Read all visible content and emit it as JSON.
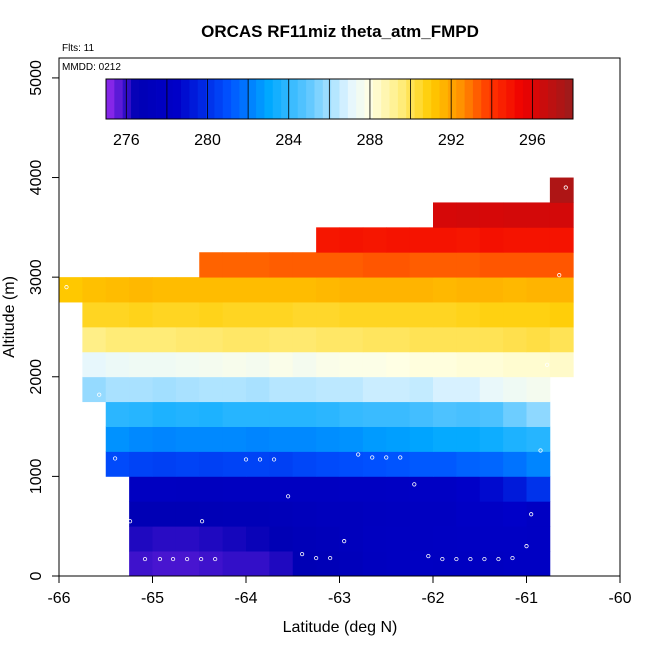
{
  "chart_data": {
    "type": "heatmap",
    "title": "ORCAS RF11miz theta_atm_FMPD",
    "annotations": {
      "flights": "Flts: 11",
      "date": "MMDD: 0212"
    },
    "xlabel": "Latitude (deg N)",
    "ylabel": "Altitude (m)",
    "xlim": [
      -66,
      -60
    ],
    "ylim": [
      0,
      5200
    ],
    "x_ticks": [
      -66,
      -65,
      -64,
      -63,
      -62,
      -61,
      -60
    ],
    "x_tick_labels": [
      "-66",
      "-65",
      "-64",
      "-63",
      "-62",
      "-61",
      "-60"
    ],
    "y_ticks": [
      0,
      1000,
      2000,
      3000,
      4000,
      5000
    ],
    "y_tick_labels": [
      "0",
      "1000",
      "2000",
      "3000",
      "4000",
      "5000"
    ],
    "colorbar": {
      "range": [
        275,
        298
      ],
      "ticks": [
        276,
        280,
        284,
        288,
        292,
        296
      ],
      "tick_labels": [
        "276",
        "280",
        "284",
        "288",
        "292",
        "296"
      ],
      "stops": [
        {
          "v": 275.0,
          "c": "#9a2cf0"
        },
        {
          "v": 276.5,
          "c": "#0000b4"
        },
        {
          "v": 278.5,
          "c": "#0000c8"
        },
        {
          "v": 281.0,
          "c": "#0050ff"
        },
        {
          "v": 283.0,
          "c": "#00a8ff"
        },
        {
          "v": 285.0,
          "c": "#60c8ff"
        },
        {
          "v": 287.0,
          "c": "#e4f6ff"
        },
        {
          "v": 288.0,
          "c": "#ffffe4"
        },
        {
          "v": 289.5,
          "c": "#ffee80"
        },
        {
          "v": 291.0,
          "c": "#ffcc00"
        },
        {
          "v": 292.5,
          "c": "#ff9000"
        },
        {
          "v": 294.0,
          "c": "#ff3000"
        },
        {
          "v": 295.5,
          "c": "#ee0000"
        },
        {
          "v": 298.0,
          "c": "#9a1c1c"
        }
      ]
    },
    "cell_altitude_step_m": 250,
    "cell_latitude_step_deg": 0.25,
    "rows": [
      {
        "alt": 125,
        "lat_start": -65.25,
        "values": [
          275.9,
          275.8,
          275.8,
          275.9,
          276.0,
          276.0,
          276.2,
          276.6,
          276.8,
          277.2,
          277.6,
          277.8,
          277.9,
          277.8,
          277.8,
          277.8,
          278.0,
          278.0
        ]
      },
      {
        "alt": 375,
        "lat_start": -65.25,
        "values": [
          276.2,
          276.1,
          276.1,
          276.2,
          276.3,
          276.4,
          276.6,
          276.9,
          277.1,
          277.4,
          277.7,
          277.8,
          277.8,
          277.9,
          278.0,
          278.1,
          278.1,
          278.0
        ]
      },
      {
        "alt": 625,
        "lat_start": -65.25,
        "values": [
          276.6,
          276.6,
          276.6,
          276.7,
          276.8,
          276.8,
          277.0,
          277.2,
          277.4,
          277.4,
          277.6,
          277.7,
          277.8,
          277.8,
          278.2,
          278.2,
          278.5,
          278.0
        ]
      },
      {
        "alt": 875,
        "lat_start": -65.25,
        "values": [
          277.8,
          277.8,
          277.7,
          277.6,
          277.7,
          277.7,
          277.8,
          277.8,
          277.8,
          277.9,
          277.9,
          278.0,
          278.1,
          278.1,
          278.5,
          278.8,
          279.3,
          280.1
        ]
      },
      {
        "alt": 1125,
        "lat_start": -65.5,
        "values": [
          280.8,
          280.6,
          280.5,
          280.6,
          280.5,
          280.6,
          280.6,
          280.5,
          280.7,
          280.8,
          280.9,
          281.0,
          281.1,
          281.2,
          281.2,
          281.4,
          281.5,
          281.8,
          282.2
        ]
      },
      {
        "alt": 1375,
        "lat_start": -65.5,
        "values": [
          282.5,
          282.3,
          282.2,
          282.3,
          282.3,
          282.3,
          282.2,
          282.3,
          282.3,
          282.4,
          282.5,
          282.7,
          282.8,
          282.9,
          283.1,
          283.1,
          283.3,
          283.6,
          283.8
        ]
      },
      {
        "alt": 1625,
        "lat_start": -65.5,
        "values": [
          283.9,
          283.8,
          283.6,
          283.7,
          283.6,
          283.8,
          283.8,
          283.8,
          283.8,
          283.9,
          284.1,
          284.2,
          284.2,
          284.4,
          284.6,
          284.5,
          284.6,
          285.2,
          285.7
        ]
      },
      {
        "alt": 1875,
        "lat_start": -65.75,
        "values": [
          285.8,
          286.1,
          286.1,
          286.0,
          286.1,
          286.2,
          286.2,
          286.1,
          286.3,
          286.3,
          286.4,
          286.4,
          286.6,
          286.6,
          286.5,
          286.8,
          286.8,
          287.2,
          287.4,
          287.6
        ]
      },
      {
        "alt": 2125,
        "lat_start": -65.75,
        "values": [
          287.1,
          287.3,
          287.4,
          287.4,
          287.5,
          287.6,
          287.7,
          287.6,
          287.8,
          287.6,
          287.8,
          287.9,
          287.9,
          288.0,
          288.1,
          288.1,
          288.2,
          288.2,
          288.3,
          288.3,
          288.4
        ]
      },
      {
        "alt": 2375,
        "lat_start": -65.75,
        "values": [
          289.4,
          289.6,
          289.6,
          289.6,
          289.7,
          289.7,
          289.8,
          289.8,
          289.7,
          289.7,
          289.8,
          289.8,
          289.9,
          289.9,
          290.0,
          290.0,
          290.0,
          290.0,
          290.1,
          290.2,
          290.0
        ]
      },
      {
        "alt": 2625,
        "lat_start": -65.75,
        "values": [
          290.6,
          290.6,
          290.7,
          290.6,
          290.6,
          290.7,
          290.6,
          290.6,
          290.6,
          290.5,
          290.5,
          290.6,
          290.6,
          290.6,
          290.6,
          290.6,
          290.7,
          290.8,
          290.8,
          290.8,
          290.9
        ]
      },
      {
        "alt": 2875,
        "lat_start": -66.0,
        "values": [
          291.1,
          291.3,
          291.4,
          291.5,
          291.4,
          291.4,
          291.4,
          291.4,
          291.4,
          291.4,
          291.4,
          291.5,
          291.6,
          291.6,
          291.6,
          291.6,
          291.5,
          291.6,
          291.6,
          291.5,
          291.6,
          291.6
        ]
      },
      {
        "alt": 3125,
        "lat_start": -64.5,
        "values": [
          293.2,
          293.2,
          293.2,
          293.3,
          293.3,
          293.3,
          293.3,
          293.4,
          293.4,
          293.3,
          293.3,
          293.3,
          293.4,
          293.4,
          293.4,
          293.4
        ]
      },
      {
        "alt": 3375,
        "lat_start": -63.25,
        "values": [
          294.8,
          294.9,
          294.8,
          294.9,
          294.9,
          294.9,
          294.8,
          295.0,
          294.9,
          294.9,
          294.9
        ]
      },
      {
        "alt": 3625,
        "lat_start": -62.0,
        "values": [
          296.2,
          296.3,
          296.2,
          296.3,
          296.3,
          296.3
        ]
      },
      {
        "alt": 3875,
        "lat_start": -60.75,
        "values": [
          297.4
        ]
      }
    ],
    "observations": [
      [
        -65.4,
        1180
      ],
      [
        -65.24,
        550
      ],
      [
        -65.08,
        170
      ],
      [
        -64.92,
        170
      ],
      [
        -64.78,
        170
      ],
      [
        -64.63,
        170
      ],
      [
        -64.48,
        170
      ],
      [
        -64.33,
        170
      ],
      [
        -64.47,
        550
      ],
      [
        -64.0,
        1170
      ],
      [
        -63.85,
        1170
      ],
      [
        -63.7,
        1170
      ],
      [
        -63.55,
        800
      ],
      [
        -63.4,
        220
      ],
      [
        -63.25,
        180
      ],
      [
        -63.1,
        180
      ],
      [
        -62.95,
        350
      ],
      [
        -62.8,
        1220
      ],
      [
        -62.65,
        1190
      ],
      [
        -62.5,
        1190
      ],
      [
        -62.35,
        1190
      ],
      [
        -62.2,
        920
      ],
      [
        -62.05,
        200
      ],
      [
        -61.9,
        170
      ],
      [
        -61.75,
        170
      ],
      [
        -61.6,
        170
      ],
      [
        -61.45,
        170
      ],
      [
        -61.3,
        170
      ],
      [
        -61.15,
        180
      ],
      [
        -61.0,
        300
      ],
      [
        -60.95,
        620
      ],
      [
        -60.85,
        1260
      ],
      [
        -60.78,
        2120
      ],
      [
        -60.65,
        3020
      ],
      [
        -60.58,
        3900
      ],
      [
        -65.57,
        1820
      ],
      [
        -65.92,
        2900
      ]
    ]
  }
}
